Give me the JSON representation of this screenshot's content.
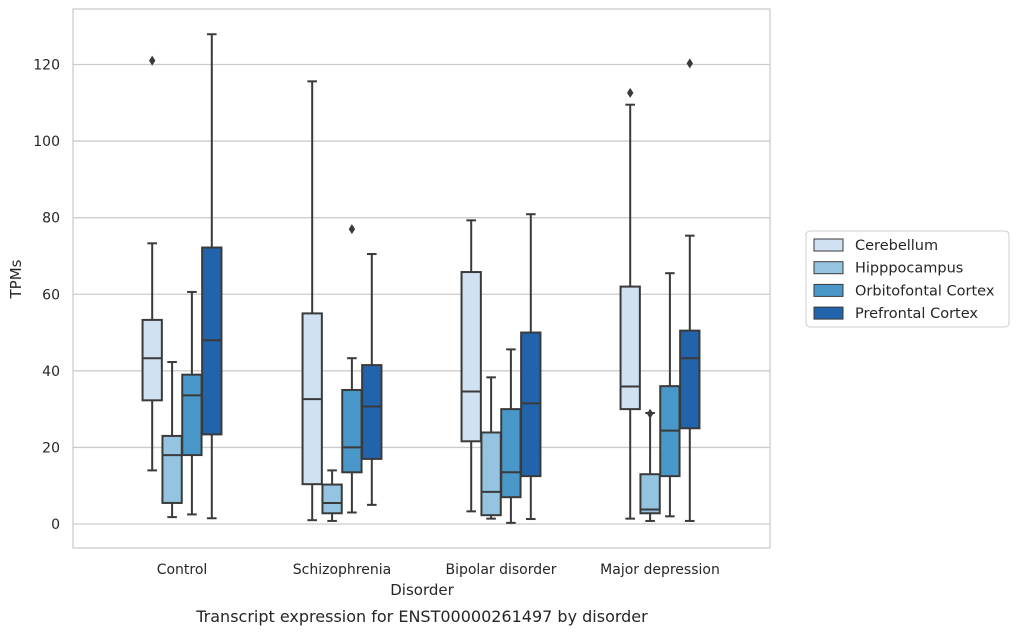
{
  "chart_data": {
    "type": "box",
    "xlabel": "Disorder",
    "ylabel": "TPMs",
    "caption": "Transcript expression for ENST00000261497 by disorder",
    "categories": [
      "Control",
      "Schizophrenia",
      "Bipolar disorder",
      "Major depression"
    ],
    "ylim": [
      -6,
      135
    ],
    "yticks": [
      0,
      20,
      40,
      60,
      80,
      100,
      120
    ],
    "grid": "horizontal",
    "legend_position": "right",
    "series": [
      {
        "name": "Cerebellum",
        "color": "#d0e1f2",
        "boxes": [
          {
            "whisker_low": 14,
            "q1": 32.3,
            "median": 43.3,
            "q3": 53.3,
            "whisker_high": 73.3,
            "outliers": [
              121
            ]
          },
          {
            "whisker_low": 1,
            "q1": 10.4,
            "median": 32.6,
            "q3": 55,
            "whisker_high": 115.6,
            "outliers": []
          },
          {
            "whisker_low": 3.3,
            "q1": 21.6,
            "median": 34.6,
            "q3": 65.8,
            "whisker_high": 79.3,
            "outliers": []
          },
          {
            "whisker_low": 1.4,
            "q1": 30,
            "median": 35.9,
            "q3": 62,
            "whisker_high": 109.5,
            "outliers": [
              112.6
            ]
          }
        ]
      },
      {
        "name": "Hipppocampus",
        "color": "#94c4df",
        "boxes": [
          {
            "whisker_low": 1.8,
            "q1": 5.5,
            "median": 18,
            "q3": 23,
            "whisker_high": 42.3,
            "outliers": []
          },
          {
            "whisker_low": 0.8,
            "q1": 2.8,
            "median": 5.5,
            "q3": 10.3,
            "whisker_high": 14,
            "outliers": []
          },
          {
            "whisker_low": 1.4,
            "q1": 2.3,
            "median": 8.4,
            "q3": 23.9,
            "whisker_high": 38.3,
            "outliers": []
          },
          {
            "whisker_low": 0.8,
            "q1": 2.8,
            "median": 3.8,
            "q3": 13,
            "whisker_high": 29,
            "outliers": [
              28.8
            ]
          }
        ]
      },
      {
        "name": "Orbitofontal Cortex",
        "color": "#4a98c9",
        "boxes": [
          {
            "whisker_low": 2.5,
            "q1": 18,
            "median": 33.6,
            "q3": 39,
            "whisker_high": 60.6,
            "outliers": []
          },
          {
            "whisker_low": 3,
            "q1": 13.5,
            "median": 20,
            "q3": 35,
            "whisker_high": 43.3,
            "outliers": [
              77
            ]
          },
          {
            "whisker_low": 0.3,
            "q1": 7,
            "median": 13.5,
            "q3": 30,
            "whisker_high": 45.6,
            "outliers": []
          },
          {
            "whisker_low": 2,
            "q1": 12.5,
            "median": 24.4,
            "q3": 36,
            "whisker_high": 65.5,
            "outliers": []
          }
        ]
      },
      {
        "name": "Prefrontal Cortex",
        "color": "#2264ab",
        "boxes": [
          {
            "whisker_low": 1.5,
            "q1": 23.4,
            "median": 48,
            "q3": 72.2,
            "whisker_high": 127.9,
            "outliers": []
          },
          {
            "whisker_low": 5,
            "q1": 17,
            "median": 30.7,
            "q3": 41.5,
            "whisker_high": 70.5,
            "outliers": []
          },
          {
            "whisker_low": 1.3,
            "q1": 12.5,
            "median": 31.5,
            "q3": 50,
            "whisker_high": 80.9,
            "outliers": []
          },
          {
            "whisker_low": 0.8,
            "q1": 25,
            "median": 43.3,
            "q3": 50.5,
            "whisker_high": 75.3,
            "outliers": [
              120.3
            ]
          }
        ]
      }
    ]
  }
}
